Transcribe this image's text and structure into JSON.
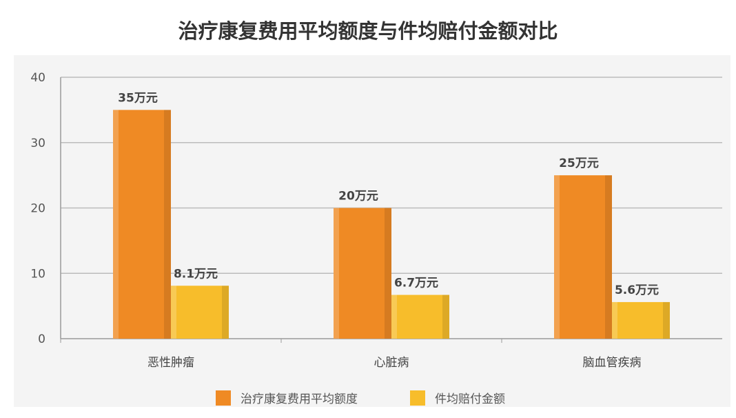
{
  "chart_data": {
    "type": "bar",
    "title": "治疗康复费用平均额度与件均赔付金额对比",
    "xlabel": "",
    "ylabel": "",
    "ylim": [
      0,
      40
    ],
    "yticks": [
      0,
      10,
      20,
      30,
      40
    ],
    "grid": true,
    "legend_position": "bottom",
    "categories": [
      "恶性肿瘤",
      "心脏病",
      "脑血管疾病"
    ],
    "series": [
      {
        "name": "治疗康复费用平均额度",
        "values": [
          35,
          20,
          25
        ],
        "labels": [
          "35万元",
          "20万元",
          "25万元"
        ],
        "color": "#ef8a24"
      },
      {
        "name": "件均赔付金额",
        "values": [
          8.1,
          6.7,
          5.6
        ],
        "labels": [
          "8.1万元",
          "6.7万元",
          "5.6万元"
        ],
        "color": "#f7bd2b"
      }
    ]
  }
}
